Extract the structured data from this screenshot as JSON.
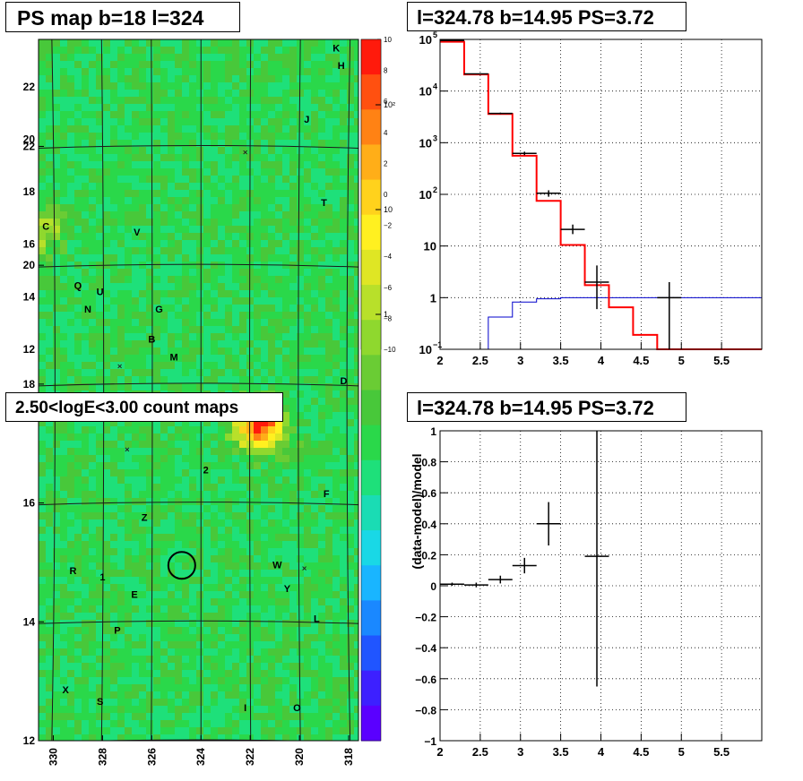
{
  "titles": {
    "ps_map": "PS map b=18 l=324",
    "spectrum": "l=324.78 b=14.95 PS=3.72",
    "count_map": "2.50<logE<3.00 count maps",
    "residual": "l=324.78 b=14.95 PS=3.72"
  },
  "colors": {
    "data": "#000000",
    "model": "#ff0000",
    "source_model": "#0000cc",
    "map_background": "#44c24a"
  },
  "chart_data": [
    {
      "type": "heatmap",
      "id": "ps_map",
      "title": "PS map b=18 l=324",
      "x_ticks": [
        "330",
        "328",
        "326",
        "324",
        "322",
        "320",
        "318"
      ],
      "y_ticks": [
        "12",
        "14",
        "16",
        "18",
        "20",
        "22"
      ],
      "xlim": [
        330.6,
        317.6
      ],
      "ylim": [
        12,
        23.8
      ],
      "colorbar": {
        "range": [
          -10,
          10
        ],
        "ticks": [
          "10",
          "8",
          "6",
          "4",
          "2",
          "0",
          "−2",
          "−4",
          "−6",
          "−8",
          "−10"
        ]
      },
      "sources": [
        {
          "label": "K",
          "l": 318.5,
          "b": 23.6
        },
        {
          "label": "H",
          "l": 318.3,
          "b": 23.3
        },
        {
          "label": "J",
          "l": 319.7,
          "b": 22.4
        },
        {
          "label": "T",
          "l": 319.0,
          "b": 21.0
        },
        {
          "label": "C",
          "l": 330.3,
          "b": 20.6
        },
        {
          "label": "V",
          "l": 326.6,
          "b": 20.5
        },
        {
          "label": "Q",
          "l": 329.0,
          "b": 19.6
        },
        {
          "label": "N",
          "l": 328.6,
          "b": 19.2
        },
        {
          "label": "U",
          "l": 328.1,
          "b": 19.5
        },
        {
          "label": "G",
          "l": 325.7,
          "b": 19.2
        },
        {
          "label": "B",
          "l": 326.0,
          "b": 18.7
        },
        {
          "label": "M",
          "l": 325.1,
          "b": 18.4
        },
        {
          "label": "D",
          "l": 318.2,
          "b": 18.0
        },
        {
          "label": "A",
          "l": 321.7,
          "b": 17.4
        },
        {
          "label": "2",
          "l": 323.8,
          "b": 16.5
        },
        {
          "label": "F",
          "l": 318.9,
          "b": 16.1
        },
        {
          "label": "Z",
          "l": 326.3,
          "b": 15.7
        },
        {
          "label": "W",
          "l": 320.9,
          "b": 14.9
        },
        {
          "label": "R",
          "l": 329.2,
          "b": 14.8
        },
        {
          "label": "1",
          "l": 328.0,
          "b": 14.7
        },
        {
          "label": "E",
          "l": 326.7,
          "b": 14.4
        },
        {
          "label": "Y",
          "l": 320.5,
          "b": 14.5
        },
        {
          "label": "L",
          "l": 319.3,
          "b": 14.0
        },
        {
          "label": "P",
          "l": 327.4,
          "b": 13.8
        },
        {
          "label": "X",
          "l": 329.5,
          "b": 12.8
        },
        {
          "label": "S",
          "l": 328.1,
          "b": 12.6
        },
        {
          "label": "I",
          "l": 322.2,
          "b": 12.5
        },
        {
          "label": "O",
          "l": 320.1,
          "b": 12.5
        }
      ],
      "crosses": [
        {
          "l": 322.2,
          "b": 21.9
        },
        {
          "l": 327.3,
          "b": 18.3
        },
        {
          "l": 327.0,
          "b": 16.9
        },
        {
          "l": 319.8,
          "b": 14.9
        }
      ],
      "marker_circle": {
        "l": 324.78,
        "b": 14.95
      }
    },
    {
      "type": "line",
      "id": "spectrum",
      "title": "l=324.78 b=14.95 PS=3.72",
      "xlim": [
        2,
        6
      ],
      "ylim": [
        0.1,
        100000
      ],
      "ylog": true,
      "grid": true,
      "x_ticks": [
        "2",
        "2.5",
        "3",
        "3.5",
        "4",
        "4.5",
        "5",
        "5.5"
      ],
      "y_tick_labels": [
        {
          "base": "10",
          "exp": "−1"
        },
        {
          "base": "1",
          "exp": ""
        },
        {
          "base": "10",
          "exp": ""
        },
        {
          "base": "10",
          "exp": "2"
        },
        {
          "base": "10",
          "exp": "3"
        },
        {
          "base": "10",
          "exp": "4"
        },
        {
          "base": "10",
          "exp": "5"
        }
      ],
      "bin_edges": [
        2.0,
        2.3,
        2.6,
        2.9,
        3.2,
        3.5,
        3.8,
        4.1,
        4.4,
        4.7,
        5.0,
        6.0
      ],
      "series": [
        {
          "kind": "model_total",
          "values": [
            90000,
            21000,
            3600,
            560,
            75,
            10.5,
            1.75,
            0.65,
            0.19,
            0.1,
            0.1
          ]
        },
        {
          "kind": "model_source",
          "values": [
            0.1,
            0.1,
            0.42,
            0.82,
            0.95,
            1.0,
            1.0,
            1.0,
            1.0,
            1.0,
            1.0
          ]
        },
        {
          "kind": "data",
          "points": [
            {
              "x": 2.15,
              "y": 95000,
              "lo": 94400,
              "hi": 95600
            },
            {
              "x": 2.45,
              "y": 21500,
              "lo": 21200,
              "hi": 21800
            },
            {
              "x": 2.75,
              "y": 3700,
              "lo": 3580,
              "hi": 3820
            },
            {
              "x": 3.05,
              "y": 620,
              "lo": 575,
              "hi": 670
            },
            {
              "x": 3.35,
              "y": 105,
              "lo": 90,
              "hi": 120
            },
            {
              "x": 3.65,
              "y": 21,
              "lo": 17,
              "hi": 26
            },
            {
              "x": 3.95,
              "y": 2.0,
              "lo": 0.6,
              "hi": 4.2
            },
            {
              "x": 4.85,
              "y": 1.0,
              "lo": 0.1,
              "hi": 2.0
            }
          ]
        }
      ]
    },
    {
      "type": "heatmap",
      "id": "count_map",
      "title": "2.50<logE<3.00 count maps",
      "x_ticks": [
        "330",
        "328",
        "326",
        "324",
        "322",
        "320",
        "318"
      ],
      "y_ticks": [
        "12",
        "14",
        "16",
        "18",
        "20",
        "22"
      ],
      "xlim": [
        330.6,
        317.6
      ],
      "ylim": [
        12,
        23.8
      ],
      "colorbar": {
        "log": true,
        "ticks": [
          "10²",
          "10",
          "1"
        ]
      },
      "hotspots": [
        {
          "l": 321.6,
          "b": 17.3,
          "strength": 1.0
        },
        {
          "l": 330.5,
          "b": 20.6,
          "strength": 0.35
        }
      ],
      "marker_circle": {
        "l": 324.78,
        "b": 14.95
      }
    },
    {
      "type": "scatter",
      "id": "residual",
      "title": "l=324.78 b=14.95 PS=3.72",
      "ylabel": "(data-model)/model",
      "xlim": [
        2,
        6
      ],
      "ylim": [
        -1,
        1
      ],
      "grid": true,
      "x_ticks": [
        "2",
        "2.5",
        "3",
        "3.5",
        "4",
        "4.5",
        "5",
        "5.5"
      ],
      "y_ticks": [
        "−1",
        "−0.8",
        "−0.6",
        "−0.4",
        "−0.2",
        "0",
        "0.2",
        "0.4",
        "0.6",
        "0.8",
        "1"
      ],
      "points": [
        {
          "x": 2.15,
          "y": 0.01,
          "xerr": 0.15,
          "lo": 0.0,
          "hi": 0.02
        },
        {
          "x": 2.45,
          "y": 0.005,
          "xerr": 0.15,
          "lo": -0.01,
          "hi": 0.02
        },
        {
          "x": 2.75,
          "y": 0.04,
          "xerr": 0.15,
          "lo": 0.015,
          "hi": 0.065
        },
        {
          "x": 3.05,
          "y": 0.13,
          "xerr": 0.15,
          "lo": 0.08,
          "hi": 0.18
        },
        {
          "x": 3.35,
          "y": 0.4,
          "xerr": 0.15,
          "lo": 0.26,
          "hi": 0.54
        },
        {
          "x": 3.95,
          "y": 0.19,
          "xerr": 0.15,
          "lo": -0.65,
          "hi": 1.0
        }
      ]
    }
  ]
}
